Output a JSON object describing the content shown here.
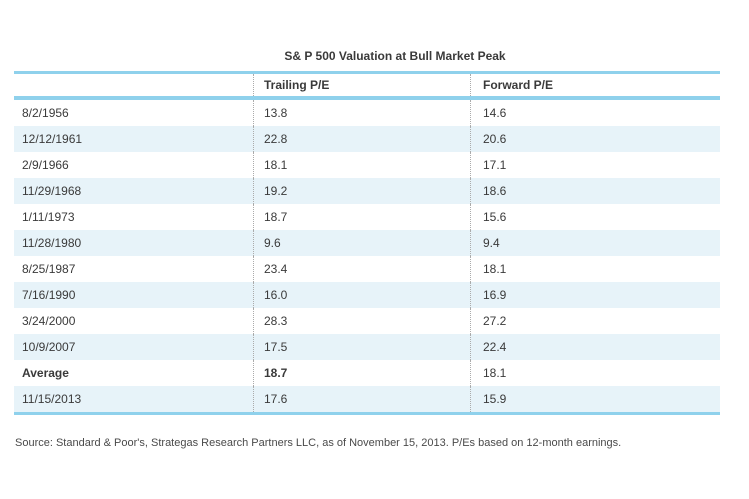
{
  "chart_data": {
    "type": "table",
    "title": "S& P 500 Valuation at Bull Market Peak",
    "columns": [
      "",
      "Trailing P/E",
      "Forward P/E"
    ],
    "rows": [
      {
        "date": "8/2/1956",
        "trailing": "13.8",
        "forward": "14.6"
      },
      {
        "date": "12/12/1961",
        "trailing": "22.8",
        "forward": "20.6"
      },
      {
        "date": "2/9/1966",
        "trailing": "18.1",
        "forward": "17.1"
      },
      {
        "date": "11/29/1968",
        "trailing": "19.2",
        "forward": "18.6"
      },
      {
        "date": "1/11/1973",
        "trailing": "18.7",
        "forward": "15.6"
      },
      {
        "date": "11/28/1980",
        "trailing": "9.6",
        "forward": "9.4"
      },
      {
        "date": "8/25/1987",
        "trailing": "23.4",
        "forward": "18.1"
      },
      {
        "date": "7/16/1990",
        "trailing": "16.0",
        "forward": "16.9"
      },
      {
        "date": "3/24/2000",
        "trailing": "28.3",
        "forward": "27.2"
      },
      {
        "date": "10/9/2007",
        "trailing": "17.5",
        "forward": "22.4"
      },
      {
        "date": "Average",
        "trailing": "18.7",
        "forward": "18.1"
      },
      {
        "date": "11/15/2013",
        "trailing": "17.6",
        "forward": "15.9"
      }
    ],
    "source": "Source: Standard & Poor's, Strategas Research Partners LLC, as of November 15, 2013. P/Es based on 12-month earnings.",
    "layout": {
      "zebra_striping": true,
      "grid": "dotted-column-separators",
      "legend": "none"
    }
  },
  "colors": {
    "accent_line": "#8FD1EC",
    "row_alternate": "#E7F3F9",
    "text": "#3A3A3A",
    "column_separator": "#ABABAB",
    "source_text": "#4A4A4A",
    "background": "#FFFFFF"
  }
}
